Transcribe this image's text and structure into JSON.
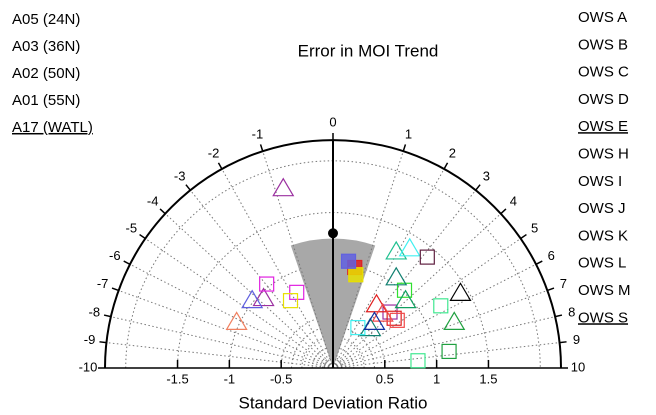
{
  "chart_data": {
    "type": "polar-scatter",
    "title": "Error in MOI Trend",
    "x_label": "Standard Deviation Ratio",
    "xlim": [
      -2.2,
      2.2
    ],
    "ylim": [
      0,
      2.2
    ],
    "xticks": [
      -1.5,
      -1,
      -0.5,
      0.5,
      1,
      1.5
    ],
    "angle_ticks": [
      -10,
      -9,
      -8,
      -7,
      -6,
      -5,
      -4,
      -3,
      -2,
      -1,
      0,
      1,
      2,
      3,
      4,
      5,
      6,
      7,
      8,
      9,
      10
    ],
    "grid_radii": [
      0.1,
      0.2,
      0.3,
      0.4,
      0.5,
      1,
      1.5,
      2
    ],
    "series": [
      {
        "name": "A05 (24N)",
        "color": "#9b30a0",
        "points": [
          {
            "x": -0.48,
            "y": 1.73,
            "shape": "triangle"
          },
          {
            "x": -0.67,
            "y": 0.67,
            "shape": "triangle"
          },
          {
            "x": 0.55,
            "y": 0.54,
            "shape": "square"
          }
        ]
      },
      {
        "name": "A03 (36N)",
        "color": "#e020e0",
        "points": [
          {
            "x": -0.64,
            "y": 0.81,
            "shape": "square"
          },
          {
            "x": -0.35,
            "y": 0.73,
            "shape": "square"
          }
        ]
      },
      {
        "name": "A02 (50N)",
        "color": "#e02020",
        "points": [
          {
            "x": 0.42,
            "y": 0.61,
            "shape": "triangle"
          },
          {
            "x": 0.59,
            "y": 0.48,
            "shape": "square"
          },
          {
            "x": 0.21,
            "y": 0.97,
            "shape": "square",
            "filled": true
          }
        ]
      },
      {
        "name": "A01 (55N)",
        "color": "#f04848",
        "points": [
          {
            "x": 0.48,
            "y": 0.52,
            "shape": "triangle"
          },
          {
            "x": 0.62,
            "y": 0.46,
            "shape": "square"
          }
        ]
      },
      {
        "name": "A17 (WATL)",
        "color": "#e8e000",
        "underline": true,
        "points": [
          {
            "x": -0.41,
            "y": 0.65,
            "shape": "square"
          },
          {
            "x": 0.22,
            "y": 0.9,
            "shape": "square",
            "filled": true
          }
        ]
      },
      {
        "name": "OWS A",
        "color": "#40e890",
        "points": [
          {
            "x": 1.04,
            "y": 0.6,
            "shape": "square"
          },
          {
            "x": 0.82,
            "y": 0.07,
            "shape": "square"
          }
        ]
      },
      {
        "name": "OWS B",
        "color": "#20a040",
        "points": [
          {
            "x": 1.17,
            "y": 0.44,
            "shape": "triangle"
          },
          {
            "x": 1.12,
            "y": 0.16,
            "shape": "square"
          }
        ]
      },
      {
        "name": "OWS C",
        "color": "#20c090",
        "points": [
          {
            "x": 0.61,
            "y": 1.12,
            "shape": "triangle"
          }
        ]
      },
      {
        "name": "OWS D",
        "color": "#30e030",
        "points": [
          {
            "x": 0.69,
            "y": 0.75,
            "shape": "square"
          }
        ]
      },
      {
        "name": "OWS E",
        "color": "#6060e0",
        "underline": true,
        "points": [
          {
            "x": 0.15,
            "y": 1.03,
            "shape": "square",
            "filled": true
          },
          {
            "x": -0.78,
            "y": 0.65,
            "shape": "triangle"
          }
        ]
      },
      {
        "name": "OWS H",
        "color": "#108070",
        "points": [
          {
            "x": 0.61,
            "y": 0.87,
            "shape": "triangle"
          },
          {
            "x": 0.36,
            "y": 0.38,
            "shape": "triangle"
          }
        ]
      },
      {
        "name": "OWS I",
        "color": "#40f0f0",
        "points": [
          {
            "x": 0.74,
            "y": 1.15,
            "shape": "triangle"
          },
          {
            "x": 0.24,
            "y": 0.39,
            "shape": "square"
          }
        ]
      },
      {
        "name": "OWS J",
        "color": "#1030a0",
        "points": [
          {
            "x": 0.4,
            "y": 0.44,
            "shape": "triangle"
          }
        ]
      },
      {
        "name": "OWS K",
        "color": "#10a060",
        "points": [
          {
            "x": 0.7,
            "y": 0.65,
            "shape": "triangle"
          }
        ]
      },
      {
        "name": "OWS L",
        "color": "#602040",
        "points": [
          {
            "x": 0.91,
            "y": 1.07,
            "shape": "square"
          }
        ]
      },
      {
        "name": "OWS M",
        "color": "#000000",
        "points": [
          {
            "x": 1.23,
            "y": 0.72,
            "shape": "triangle"
          }
        ]
      },
      {
        "name": "OWS S",
        "color": "#f08060",
        "underline": true,
        "points": [
          {
            "x": -0.93,
            "y": 0.44,
            "shape": "triangle"
          }
        ]
      }
    ]
  }
}
